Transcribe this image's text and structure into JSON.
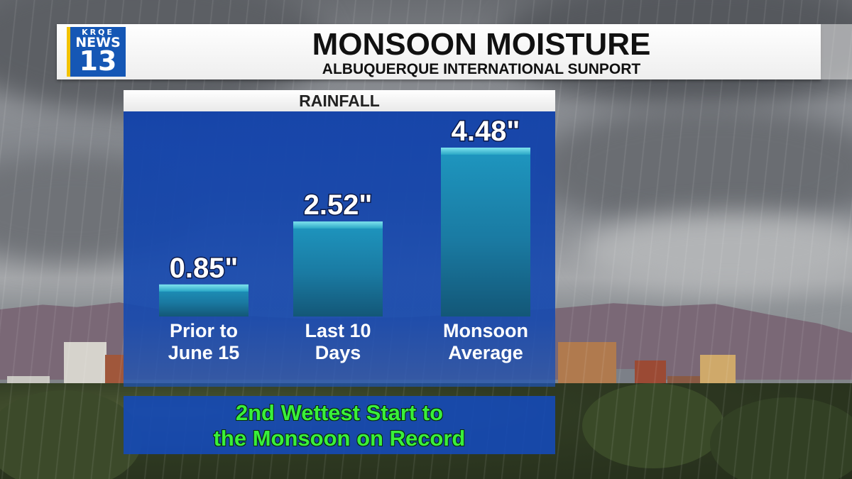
{
  "header": {
    "logo_top": "KRQE",
    "logo_mid": "NEWS",
    "logo_num": "13",
    "title": "MONSOON MOISTURE",
    "subtitle": "ALBUQUERQUE INTERNATIONAL SUNPORT"
  },
  "chart_data": {
    "type": "bar",
    "title": "RAINFALL",
    "unit": "\"",
    "categories": [
      [
        "Prior to",
        "June 15"
      ],
      [
        "Last 10",
        "Days"
      ],
      [
        "Monsoon",
        "Average"
      ]
    ],
    "values": [
      0.85,
      2.52,
      4.48
    ],
    "value_labels": [
      "0.85\"",
      "2.52\"",
      "4.48\""
    ],
    "xlabel": "",
    "ylabel": "",
    "grid": false,
    "colors": {
      "bar_top": "#1d8fb8",
      "bar_bottom": "#124a6a",
      "surface": "#48c8d8"
    }
  },
  "banner": {
    "line1": "2nd Wettest Start to",
    "line2": "the Monsoon on Record"
  },
  "colors": {
    "panel": "#1444aa",
    "banner_text": "#39f03a",
    "logo_blue": "#1557b5",
    "logo_accent": "#f2c200"
  }
}
